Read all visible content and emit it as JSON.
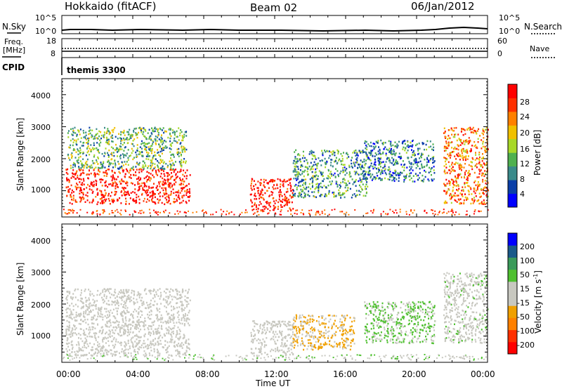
{
  "header": {
    "radar": "Hokkaido (fitACF)",
    "beam": "Beam 02",
    "date": "06/Jan/2012"
  },
  "noise_panel": {
    "left_label": "N.Sky",
    "right_label": "N.Search",
    "y_ticks": [
      "10^5",
      "10^0"
    ]
  },
  "freq_panel": {
    "left_label_1": "Freq.",
    "left_label_2": "[MHz]",
    "left_ticks": [
      "18",
      "8"
    ],
    "right_label": "Nave",
    "right_ticks": [
      "60",
      "0"
    ]
  },
  "cpid_panel": {
    "label": "CPID",
    "program": "themis 3300"
  },
  "time_axis": {
    "label": "Time UT",
    "ticks": [
      "00:00",
      "04:00",
      "08:00",
      "12:00",
      "16:00",
      "20:00",
      "00:00"
    ]
  },
  "power_panel": {
    "ylabel": "Slant Range [km]",
    "y_ticks": [
      "1000",
      "2000",
      "3000",
      "4000"
    ],
    "colorbar_label": "Power [dB]",
    "colorbar_ticks": [
      "28",
      "24",
      "20",
      "16",
      "12",
      "8",
      "4"
    ]
  },
  "velocity_panel": {
    "ylabel": "Slant Range [km]",
    "y_ticks": [
      "1000",
      "2000",
      "3000",
      "4000"
    ],
    "colorbar_label": "Velocity [m s",
    "colorbar_unit_sup": "-1",
    "colorbar_label_end": "]",
    "colorbar_ticks": [
      "200",
      "100",
      "50",
      "15",
      "-15",
      "-50",
      "-100",
      "-200"
    ]
  },
  "chart_data": [
    {
      "type": "heatmap",
      "title": "Power",
      "xlabel": "Time UT",
      "ylabel": "Slant Range [km]",
      "xlim": [
        0,
        24
      ],
      "ylim": [
        180,
        4500
      ],
      "colorbar": {
        "label": "Power [dB]",
        "range": [
          0,
          30
        ],
        "colors": [
          "#0000ff",
          "#0a3fa8",
          "#3a8a8a",
          "#4fb04f",
          "#a8d828",
          "#f0c000",
          "#ff8000",
          "#ff3000",
          "#ff0000"
        ]
      },
      "regions": [
        {
          "t": [
            0.2,
            7.2
          ],
          "r": [
            600,
            1700
          ],
          "power": 28
        },
        {
          "t": [
            0.3,
            7.0
          ],
          "r": [
            1700,
            3000
          ],
          "power": 12
        },
        {
          "t": [
            10.6,
            13.0
          ],
          "r": [
            400,
            1400
          ],
          "power": 28
        },
        {
          "t": [
            13.0,
            17.2
          ],
          "r": [
            800,
            2300
          ],
          "power": 10
        },
        {
          "t": [
            17.0,
            21.0
          ],
          "r": [
            1300,
            2600
          ],
          "power": 8
        },
        {
          "t": [
            21.5,
            24.0
          ],
          "r": [
            600,
            3000
          ],
          "power": 22
        }
      ]
    },
    {
      "type": "heatmap",
      "title": "Velocity",
      "xlabel": "Time UT",
      "ylabel": "Slant Range [km]",
      "xlim": [
        0,
        24
      ],
      "ylim": [
        180,
        4500
      ],
      "colorbar": {
        "label": "Velocity [m s-1]",
        "range": [
          -250,
          250
        ],
        "colors": [
          "#ff0000",
          "#ff3000",
          "#ff8000",
          "#f0a000",
          "#c8c8c0",
          "#c8c8c0",
          "#4fc030",
          "#3a9a5a",
          "#1a5a8a",
          "#0000ff"
        ]
      },
      "regions": [
        {
          "t": [
            0.2,
            7.2
          ],
          "r": [
            400,
            2500
          ],
          "velocity": 0
        },
        {
          "t": [
            10.6,
            13.0
          ],
          "r": [
            400,
            1500
          ],
          "velocity": 0
        },
        {
          "t": [
            13.0,
            16.5
          ],
          "r": [
            600,
            1700
          ],
          "velocity": -60
        },
        {
          "t": [
            17.0,
            21.0
          ],
          "r": [
            800,
            2100
          ],
          "velocity": 60
        },
        {
          "t": [
            21.5,
            24.0
          ],
          "r": [
            800,
            3000
          ],
          "velocity": 20
        }
      ]
    }
  ]
}
